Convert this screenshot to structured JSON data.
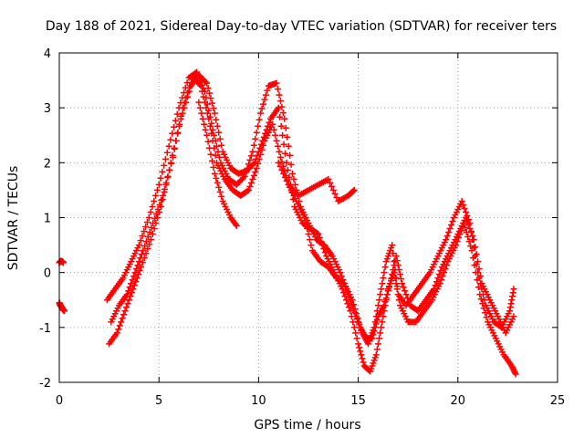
{
  "chart_data": {
    "type": "scatter",
    "title": "Day 188 of 2021, Sidereal Day-to-day VTEC variation (SDTVAR) for receiver ters",
    "xlabel": "GPS time / hours",
    "ylabel": "SDTVAR / TECUs",
    "xlim": [
      0,
      25
    ],
    "ylim": [
      -2,
      4
    ],
    "xticks": [
      0,
      5,
      10,
      15,
      20,
      25
    ],
    "yticks": [
      -2,
      -1,
      0,
      1,
      2,
      3,
      4
    ],
    "grid": true,
    "legend": "none",
    "marker": "+",
    "series_color": "#ff0000",
    "series": [
      {
        "name": "track-0",
        "x": [
          0.0,
          0.05,
          0.1,
          0.15,
          0.2,
          0.25
        ],
        "y": [
          -0.55,
          -0.6,
          -0.62,
          -0.65,
          -0.68,
          -0.7
        ]
      },
      {
        "name": "track-0b",
        "x": [
          0.0,
          0.05,
          0.1,
          0.15,
          0.2
        ],
        "y": [
          0.18,
          0.2,
          0.21,
          0.2,
          0.18
        ]
      },
      {
        "name": "track-1",
        "x": [
          2.4,
          2.8,
          3.2,
          3.6,
          4.0,
          4.5,
          5.0,
          5.5,
          6.0,
          6.5,
          6.9,
          7.3,
          7.7,
          8.1,
          8.5,
          8.9,
          9.3,
          9.7,
          10.1,
          10.5,
          10.9,
          11.3,
          11.7,
          12.1,
          12.5,
          12.9,
          13.3,
          13.7,
          14.1,
          14.5,
          14.9,
          15.2,
          15.5,
          15.8,
          16.1,
          16.4,
          16.7,
          17.0,
          17.4,
          17.8,
          18.2,
          18.6,
          19.0,
          19.4,
          19.8,
          20.2,
          20.6,
          21.0,
          21.4,
          21.8,
          22.2,
          22.6,
          22.8
        ],
        "y": [
          -0.5,
          -0.3,
          -0.1,
          0.2,
          0.5,
          1.0,
          1.6,
          2.3,
          3.0,
          3.55,
          3.65,
          3.3,
          2.6,
          2.0,
          1.7,
          1.6,
          1.75,
          2.2,
          2.9,
          3.4,
          3.45,
          2.8,
          1.8,
          1.2,
          0.9,
          0.6,
          0.5,
          0.3,
          0.0,
          -0.4,
          -0.8,
          -1.1,
          -1.3,
          -1.0,
          -0.4,
          0.2,
          0.5,
          -0.4,
          -0.6,
          -0.4,
          -0.2,
          0.0,
          0.3,
          0.6,
          1.0,
          1.3,
          0.9,
          0.0,
          -0.6,
          -0.9,
          -1.0,
          -0.7,
          -0.3
        ]
      },
      {
        "name": "track-2",
        "x": [
          2.5,
          2.9,
          3.3,
          3.7,
          4.1,
          4.6,
          5.1,
          5.6,
          6.1,
          6.6,
          7.0,
          7.4,
          7.8,
          8.2,
          8.6,
          9.0,
          9.4,
          9.8,
          10.2,
          10.6,
          11.0,
          11.4,
          11.8,
          12.2,
          12.6,
          13.0,
          13.4,
          13.8,
          14.2,
          14.6,
          15.0,
          15.3,
          15.6,
          15.9,
          16.2,
          16.5,
          16.8,
          17.1,
          17.5,
          17.9,
          18.3,
          18.7,
          19.1,
          19.5,
          19.9,
          20.3,
          20.7,
          21.1,
          21.5,
          21.9,
          22.3,
          22.7,
          22.9
        ],
        "y": [
          -1.3,
          -1.1,
          -0.7,
          -0.3,
          0.1,
          0.6,
          1.2,
          2.0,
          2.8,
          3.4,
          3.6,
          3.45,
          2.9,
          2.2,
          1.9,
          1.8,
          1.85,
          2.0,
          2.4,
          2.8,
          3.0,
          2.0,
          1.2,
          0.9,
          0.8,
          0.7,
          0.3,
          0.0,
          -0.3,
          -0.7,
          -1.3,
          -1.7,
          -1.8,
          -1.5,
          -0.9,
          -0.3,
          0.0,
          -0.6,
          -0.9,
          -0.9,
          -0.7,
          -0.5,
          -0.2,
          0.2,
          0.5,
          0.9,
          0.4,
          -0.4,
          -0.9,
          -1.2,
          -1.5,
          -1.7,
          -1.85
        ]
      },
      {
        "name": "track-3",
        "x": [
          2.6,
          3.0,
          3.4,
          3.8,
          4.2,
          4.7,
          5.2,
          5.7,
          6.2,
          6.7,
          7.1,
          7.5,
          7.9,
          8.3,
          8.7,
          9.1,
          9.5,
          9.9,
          10.3,
          10.7,
          11.1,
          11.5,
          11.9,
          12.3,
          12.7,
          13.1,
          13.5,
          13.9,
          14.3,
          14.7,
          15.1,
          15.4,
          15.7,
          16.0,
          16.3,
          16.6,
          16.9,
          17.2,
          17.6,
          18.0,
          18.4,
          18.8,
          19.2,
          19.6,
          20.0,
          20.4,
          20.8,
          21.2,
          21.6,
          22.0,
          22.4,
          22.8
        ],
        "y": [
          -0.9,
          -0.6,
          -0.4,
          0.0,
          0.4,
          0.9,
          1.4,
          2.1,
          3.0,
          3.55,
          3.4,
          2.8,
          2.0,
          1.7,
          1.5,
          1.4,
          1.5,
          1.9,
          2.4,
          2.7,
          2.1,
          1.6,
          1.3,
          1.0,
          0.4,
          0.2,
          0.1,
          -0.1,
          -0.2,
          -0.5,
          -1.0,
          -1.2,
          -1.2,
          -0.8,
          -0.6,
          -0.2,
          0.3,
          -0.2,
          -0.6,
          -0.7,
          -0.5,
          -0.3,
          0.1,
          0.4,
          0.7,
          1.0,
          0.6,
          -0.2,
          -0.5,
          -0.8,
          -1.1,
          -0.8
        ]
      },
      {
        "name": "track-4",
        "x": [
          7.0,
          7.4,
          7.8,
          8.2,
          8.6,
          8.9
        ],
        "y": [
          3.1,
          2.5,
          1.8,
          1.3,
          1.0,
          0.85
        ]
      },
      {
        "name": "track-5",
        "x": [
          11.0,
          11.5,
          12.0,
          12.5,
          13.0,
          13.5,
          14.0,
          14.5,
          14.8
        ],
        "y": [
          2.0,
          1.6,
          1.4,
          1.5,
          1.6,
          1.7,
          1.3,
          1.4,
          1.5
        ]
      }
    ]
  }
}
